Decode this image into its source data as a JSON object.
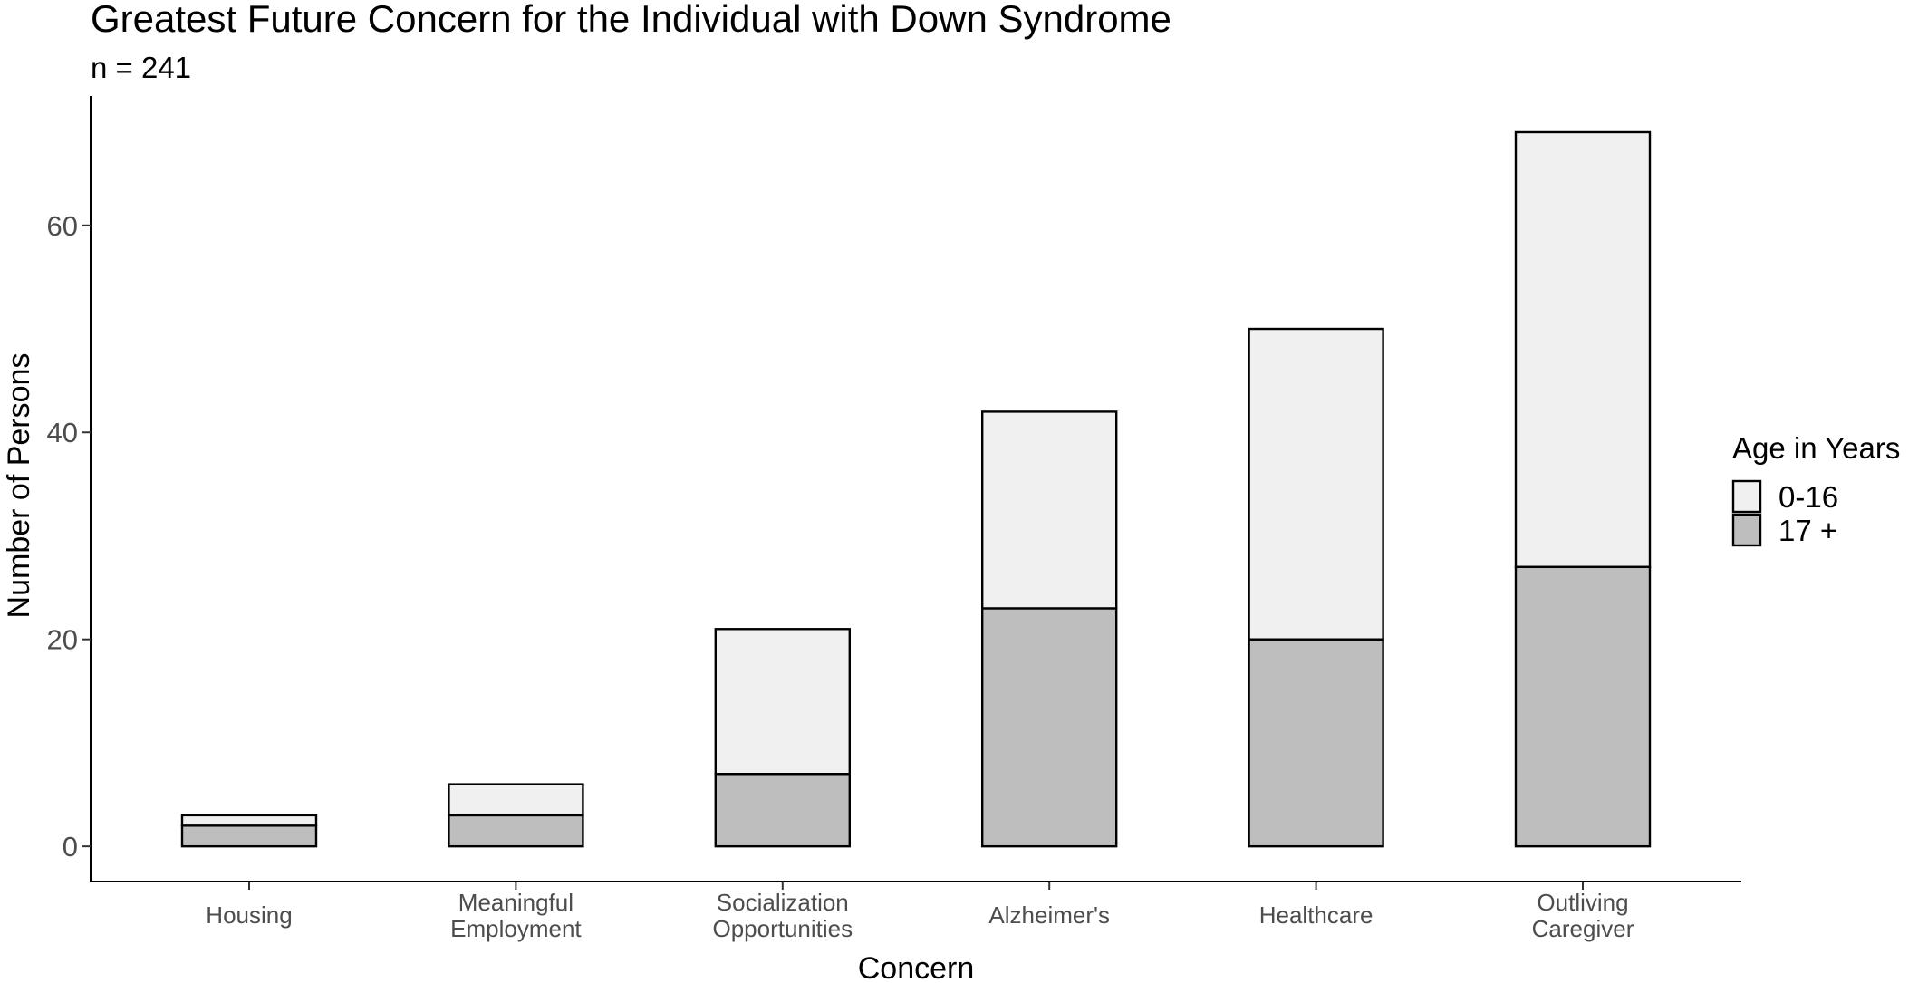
{
  "chart_data": {
    "type": "bar",
    "stacked": true,
    "title": "Greatest Future Concern for the Individual with Down Syndrome",
    "subtitle": "n = 241",
    "xlabel": "Concern",
    "ylabel": "Number of Persons",
    "ylim": [
      -3.4,
      72.5
    ],
    "yticks": [
      0,
      20,
      40,
      60
    ],
    "grid": false,
    "legend": {
      "title": "Age in Years",
      "placement": "right"
    },
    "categories": [
      [
        "Housing"
      ],
      [
        "Meaningful",
        "Employment"
      ],
      [
        "Socialization",
        "Opportunities"
      ],
      [
        "Alzheimer's"
      ],
      [
        "Healthcare"
      ],
      [
        "Outliving",
        "Caregiver"
      ]
    ],
    "series": [
      {
        "name": "17 +",
        "color": "#bebebe",
        "values": [
          2,
          3,
          7,
          23,
          20,
          27
        ]
      },
      {
        "name": "0-16",
        "color": "#f0f0f0",
        "values": [
          1,
          3,
          14,
          19,
          30,
          42
        ]
      }
    ],
    "legend_order": [
      "0-16",
      "17 +"
    ]
  }
}
